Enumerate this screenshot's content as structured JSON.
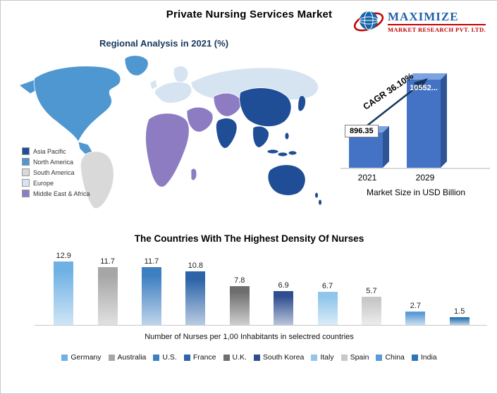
{
  "header": {
    "title": "Private Nursing Services Market",
    "logo": {
      "name": "MAXIMIZE",
      "subtitle": "MARKET RESEARCH PVT. LTD."
    }
  },
  "map_section": {
    "heading": "Regional Analysis in 2021 (%)",
    "legend": [
      {
        "label": "Asia Pacific",
        "color": "#1F4E96"
      },
      {
        "label": "North America",
        "color": "#4F97D1"
      },
      {
        "label": "South America",
        "color": "#D9D9D9"
      },
      {
        "label": "Europe",
        "color": "#D6E4F2"
      },
      {
        "label": "Middle East & Africa",
        "color": "#8E7CC3"
      }
    ]
  },
  "cagr_chart": {
    "cagr_label": "CAGR 36.10%",
    "bars": [
      {
        "year": "2021",
        "label": "896.35",
        "value": 896.35
      },
      {
        "year": "2029",
        "label": "10552...",
        "value": 10552
      }
    ],
    "axis_label": "Market Size in USD Billion",
    "bar_color": "#4472C4"
  },
  "nurses_chart": {
    "title": "The Countries With The Highest Density Of Nurses",
    "xlabel": "Number of Nurses per 1,00 Inhabitants in selectred countries",
    "categories": [
      "Germany",
      "Australia",
      "U.S.",
      "France",
      "U.K.",
      "South Korea",
      "Italy",
      "Spain",
      "China",
      "India"
    ],
    "values": [
      12.9,
      11.7,
      11.7,
      10.8,
      7.8,
      6.9,
      6.7,
      5.7,
      2.7,
      1.5
    ],
    "colors": [
      "#6FB1E4",
      "#A6A6A6",
      "#3E7FC1",
      "#2D64A8",
      "#6E6E6E",
      "#2F4E8F",
      "#8FC6EA",
      "#C8C8C8",
      "#5B9BD5",
      "#2E75B6"
    ]
  },
  "chart_data": [
    {
      "type": "bar",
      "title": "Market Size in USD Billion",
      "categories": [
        "2021",
        "2029"
      ],
      "values": [
        896.35,
        10552
      ],
      "annotations": [
        "CAGR 36.10%"
      ],
      "ylabel": "Market Size in USD Billion"
    },
    {
      "type": "bar",
      "title": "The Countries With The Highest Density Of Nurses",
      "categories": [
        "Germany",
        "Australia",
        "U.S.",
        "France",
        "U.K.",
        "South Korea",
        "Italy",
        "Spain",
        "China",
        "India"
      ],
      "values": [
        12.9,
        11.7,
        11.7,
        10.8,
        7.8,
        6.9,
        6.7,
        5.7,
        2.7,
        1.5
      ],
      "xlabel": "Number of Nurses per 1,00 Inhabitants in selectred countries",
      "ylim": [
        0,
        14
      ],
      "legend_position": "bottom",
      "grid": false
    },
    {
      "type": "map",
      "title": "Regional Analysis in 2021 (%)",
      "regions": [
        "Asia Pacific",
        "North America",
        "South America",
        "Europe",
        "Middle East & Africa"
      ]
    }
  ]
}
